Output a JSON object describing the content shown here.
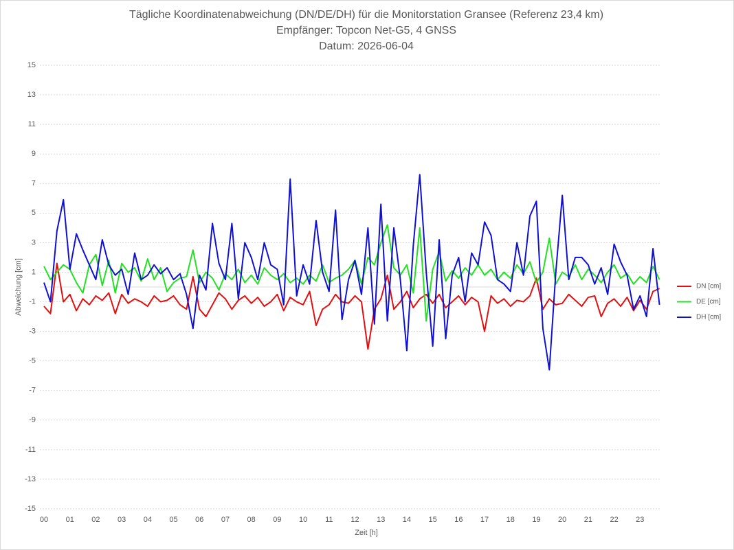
{
  "chart_data": {
    "type": "line",
    "title": "Tägliche Koordinatenabweichung (DN/DE/DH) für die Monitorstation Gransee (Referenz 23,4 km)",
    "subtitle": "Empfänger: Topcon Net-G5, 4 GNSS",
    "date": "Datum: 2026-06-04",
    "x_label": "Zeit [h]",
    "y_label": "Abweichung [cm]",
    "grid": true,
    "legend_position": "right",
    "xlim": [
      0,
      24
    ],
    "ylim": [
      -15,
      15
    ],
    "yticks": [
      -15,
      -13,
      -11,
      -9,
      -7,
      -5,
      -3,
      -1,
      1,
      3,
      5,
      7,
      9,
      11,
      13,
      15
    ],
    "xticks": [
      {
        "value": 0,
        "label": "00"
      },
      {
        "value": 1,
        "label": "01"
      },
      {
        "value": 2,
        "label": "02"
      },
      {
        "value": 3,
        "label": "03"
      },
      {
        "value": 4,
        "label": "04"
      },
      {
        "value": 5,
        "label": "05"
      },
      {
        "value": 6,
        "label": "06"
      },
      {
        "value": 7,
        "label": "07"
      },
      {
        "value": 8,
        "label": "08"
      },
      {
        "value": 9,
        "label": "09"
      },
      {
        "value": 10,
        "label": "10"
      },
      {
        "value": 11,
        "label": "11"
      },
      {
        "value": 12,
        "label": "12"
      },
      {
        "value": 13,
        "label": "13"
      },
      {
        "value": 14,
        "label": "14"
      },
      {
        "value": 15,
        "label": "15"
      },
      {
        "value": 16,
        "label": "16"
      },
      {
        "value": 17,
        "label": "17"
      },
      {
        "value": 18,
        "label": "18"
      },
      {
        "value": 19,
        "label": "19"
      },
      {
        "value": 20,
        "label": "20"
      },
      {
        "value": 21,
        "label": "21"
      },
      {
        "value": 22,
        "label": "22"
      },
      {
        "value": 23,
        "label": "23"
      }
    ],
    "x": [
      0,
      0.25,
      0.5,
      0.75,
      1,
      1.25,
      1.5,
      1.75,
      2,
      2.25,
      2.5,
      2.75,
      3,
      3.25,
      3.5,
      3.75,
      4,
      4.25,
      4.5,
      4.75,
      5,
      5.25,
      5.5,
      5.75,
      6,
      6.25,
      6.5,
      6.75,
      7,
      7.25,
      7.5,
      7.75,
      8,
      8.25,
      8.5,
      8.75,
      9,
      9.25,
      9.5,
      9.75,
      10,
      10.25,
      10.5,
      10.75,
      11,
      11.25,
      11.5,
      11.75,
      12,
      12.25,
      12.5,
      12.75,
      13,
      13.25,
      13.5,
      13.75,
      14,
      14.25,
      14.5,
      14.75,
      15,
      15.25,
      15.5,
      15.75,
      16,
      16.25,
      16.5,
      16.75,
      17,
      17.25,
      17.5,
      17.75,
      18,
      18.25,
      18.5,
      18.75,
      19,
      19.25,
      19.5,
      19.75,
      20,
      20.25,
      20.5,
      20.75,
      21,
      21.25,
      21.5,
      21.75,
      22,
      22.25,
      22.5,
      22.75,
      23,
      23.25,
      23.5,
      23.75
    ],
    "series": [
      {
        "name": "DN [cm]",
        "color": "#e01010",
        "values": [
          -1.3,
          -1.8,
          1.6,
          -1.0,
          -0.5,
          -1.6,
          -0.8,
          -1.2,
          -0.6,
          -0.9,
          -0.4,
          -1.8,
          -0.5,
          -1.1,
          -0.8,
          -1.0,
          -1.3,
          -0.6,
          -1.0,
          -0.9,
          -0.6,
          -1.2,
          -1.5,
          0.7,
          -1.5,
          -2.0,
          -1.2,
          -0.4,
          -0.8,
          -1.5,
          -0.9,
          -0.6,
          -1.1,
          -0.7,
          -1.3,
          -1.0,
          -0.5,
          -1.6,
          -0.7,
          -1.0,
          -1.2,
          -0.3,
          -2.6,
          -1.5,
          -1.2,
          -0.5,
          -1.0,
          -1.1,
          -0.6,
          -1.0,
          -4.2,
          -1.5,
          -0.8,
          0.8,
          -1.5,
          -1.0,
          -0.3,
          -1.4,
          -0.8,
          -0.5,
          -1.1,
          -0.5,
          -1.4,
          -1.0,
          -0.6,
          -1.2,
          -0.7,
          -1.0,
          -3.0,
          -0.6,
          -1.1,
          -0.8,
          -1.3,
          -0.9,
          -1.0,
          -0.6,
          0.6,
          -1.5,
          -0.8,
          -1.2,
          -1.1,
          -0.5,
          -0.9,
          -1.3,
          -0.7,
          -0.6,
          -2.0,
          -1.1,
          -0.8,
          -1.3,
          -0.7,
          -1.6,
          -0.9,
          -1.5,
          -0.3,
          -0.1
        ]
      },
      {
        "name": "DE [cm]",
        "color": "#22e022",
        "values": [
          1.4,
          0.5,
          1.0,
          1.5,
          1.2,
          0.3,
          -0.4,
          1.5,
          2.2,
          0.1,
          1.8,
          -0.4,
          1.6,
          1.0,
          1.3,
          0.4,
          1.9,
          0.5,
          1.3,
          -0.3,
          0.3,
          0.6,
          0.7,
          2.5,
          0.3,
          1.0,
          0.6,
          -0.2,
          0.9,
          0.5,
          1.2,
          0.3,
          0.8,
          0.2,
          1.3,
          0.8,
          0.5,
          0.9,
          0.3,
          0.6,
          0.2,
          0.8,
          0.4,
          1.5,
          0.3,
          0.6,
          0.8,
          1.2,
          1.8,
          0.2,
          2.0,
          1.5,
          3.0,
          4.2,
          1.3,
          0.8,
          1.5,
          -0.4,
          4.0,
          -2.3,
          1.2,
          2.4,
          0.4,
          1.1,
          0.6,
          1.3,
          0.8,
          1.5,
          0.8,
          1.2,
          0.5,
          1.0,
          0.6,
          1.5,
          0.9,
          1.7,
          0.3,
          1.0,
          3.3,
          0.2,
          1.0,
          0.7,
          1.5,
          0.5,
          1.2,
          0.8,
          0.3,
          1.0,
          1.5,
          0.6,
          0.9,
          0.2,
          0.7,
          0.3,
          1.4,
          0.5
        ]
      },
      {
        "name": "DH [cm]",
        "color": "#1010d0",
        "values": [
          0.3,
          -1.0,
          3.8,
          5.9,
          1.2,
          3.6,
          2.5,
          1.5,
          0.5,
          3.2,
          1.5,
          0.8,
          1.2,
          -0.5,
          2.3,
          0.5,
          0.8,
          1.5,
          0.9,
          1.3,
          0.5,
          0.9,
          -0.5,
          -2.8,
          0.8,
          -0.2,
          4.3,
          1.6,
          0.5,
          4.3,
          -0.8,
          3.0,
          2.0,
          0.5,
          3.0,
          1.5,
          1.2,
          -1.2,
          7.3,
          -0.6,
          1.5,
          0.2,
          4.5,
          1.0,
          -0.3,
          5.2,
          -2.2,
          0.5,
          1.8,
          -0.5,
          4.0,
          -2.5,
          5.6,
          -2.3,
          4.0,
          0.5,
          -4.3,
          2.8,
          7.6,
          1.0,
          -4.0,
          3.2,
          -3.5,
          0.8,
          2.0,
          -1.0,
          2.3,
          1.5,
          4.4,
          3.5,
          0.5,
          0.2,
          -0.3,
          3.0,
          0.8,
          4.8,
          5.8,
          -2.8,
          -5.6,
          1.0,
          6.2,
          0.5,
          2.0,
          2.0,
          1.5,
          0.2,
          1.3,
          -0.5,
          2.9,
          1.7,
          0.8,
          -1.5,
          -0.6,
          -2.0,
          2.6,
          -1.2
        ]
      }
    ]
  }
}
